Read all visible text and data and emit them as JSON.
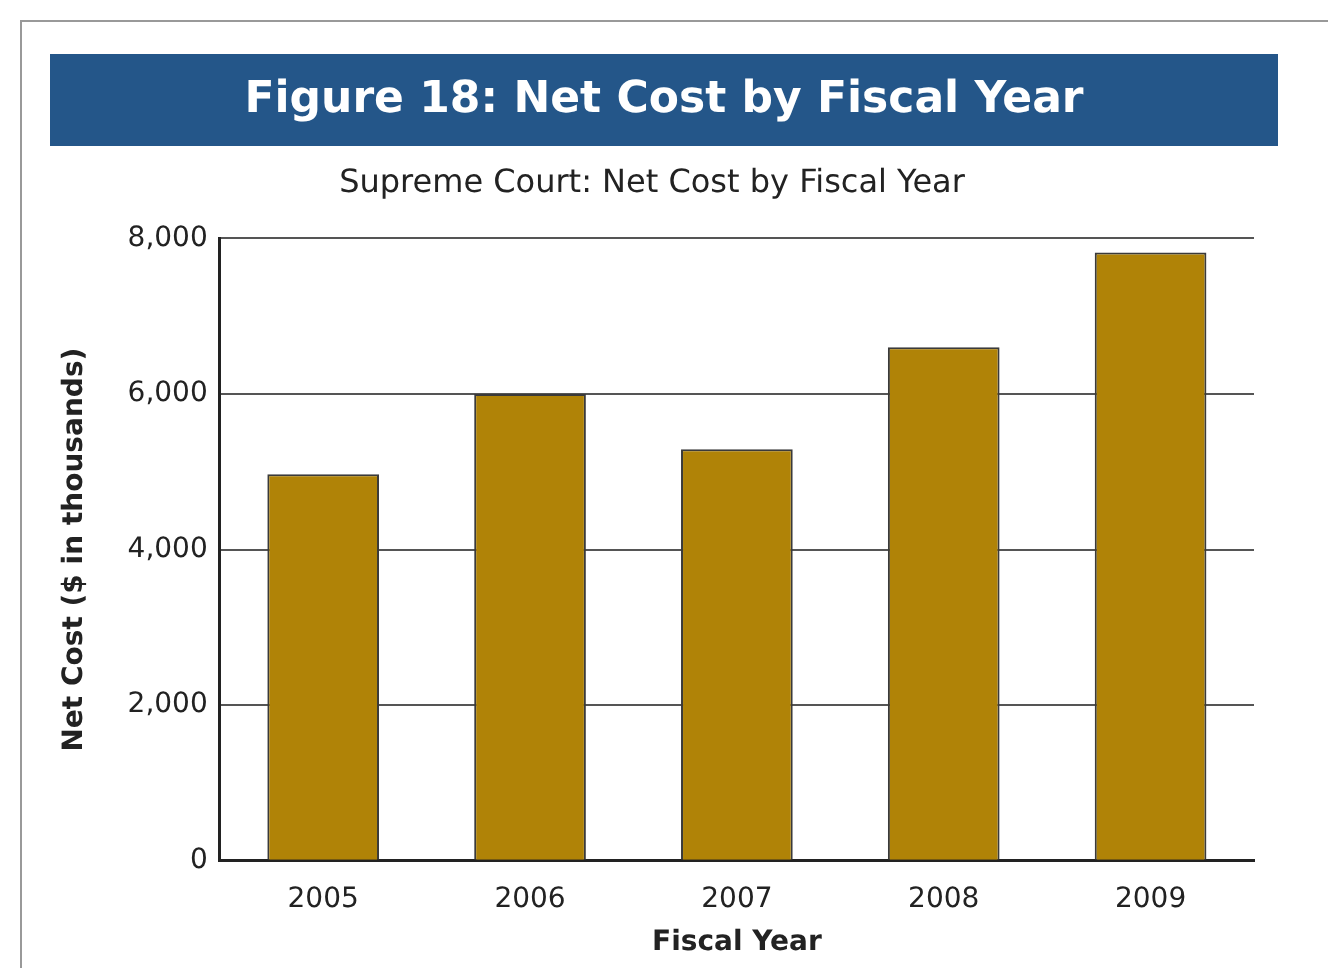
{
  "chart_data": {
    "type": "bar",
    "title": "Figure 18: Net Cost by Fiscal Year",
    "subtitle": "Supreme Court: Net Cost by Fiscal Year",
    "xlabel": "Fiscal Year",
    "ylabel": "Net Cost ($ in thousands)",
    "categories": [
      "2005",
      "2006",
      "2007",
      "2008",
      "2009"
    ],
    "values": [
      4970,
      6000,
      5290,
      6600,
      7820
    ],
    "color": "#b08307",
    "ylim": [
      0,
      8000
    ],
    "yticks": [
      {
        "value": 0,
        "label": "0"
      },
      {
        "value": 2000,
        "label": "2,000"
      },
      {
        "value": 4000,
        "label": "4,000"
      },
      {
        "value": 6000,
        "label": "6,000"
      },
      {
        "value": 8000,
        "label": "8,000"
      }
    ],
    "grid": "y",
    "legend": false
  }
}
